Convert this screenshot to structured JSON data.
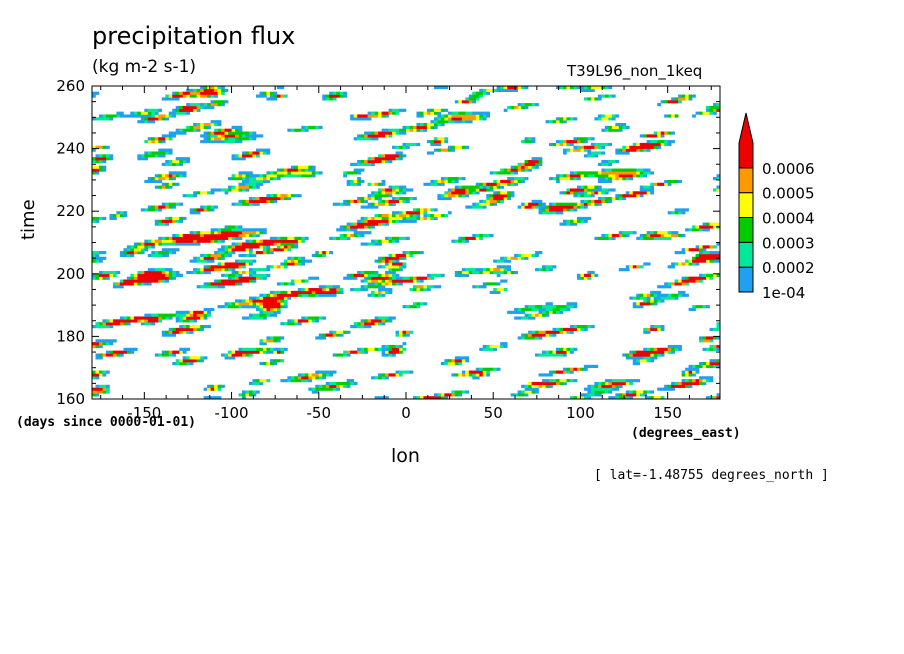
{
  "chart_data": {
    "type": "heatmap",
    "title": "precipitation flux",
    "units": "(kg m-2 s-1)",
    "run_id": "T39L96_non_1keq",
    "xlabel": "lon",
    "ylabel": "time",
    "x_units": "(degrees_east)",
    "y_units": "(days since 0000-01-01)",
    "note": "[ lat=-1.48755 degrees_north ]",
    "xlim": [
      -180,
      180
    ],
    "ylim": [
      160,
      260
    ],
    "x_ticks": [
      -150,
      -100,
      -50,
      0,
      50,
      100,
      150
    ],
    "y_ticks": [
      160,
      180,
      200,
      220,
      240,
      260
    ],
    "colorbar": {
      "levels": [
        "1e-04",
        "0.0002",
        "0.0003",
        "0.0004",
        "0.0005",
        "0.0006"
      ],
      "colors": [
        "#1fa0f0",
        "#00e89a",
        "#00cc00",
        "#ffff00",
        "#ff9900",
        "#ee0000"
      ],
      "extend": "max"
    },
    "pattern": "eastward-propagating convective precipitation streaks"
  }
}
